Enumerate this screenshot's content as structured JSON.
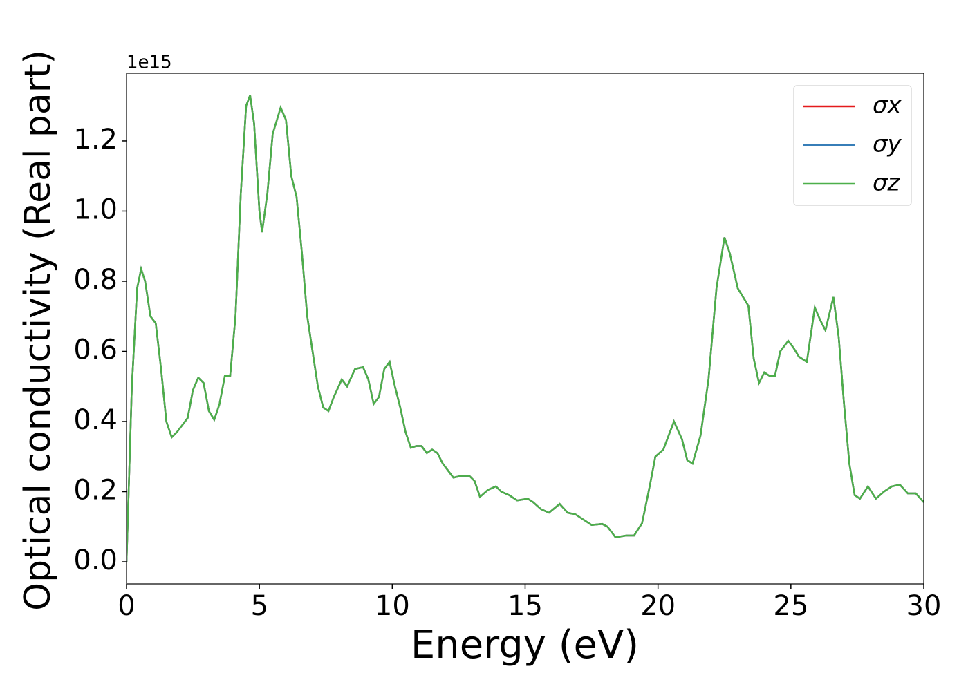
{
  "chart_data": {
    "type": "line",
    "xlabel": "Energy (eV)",
    "ylabel": "Optical conductivity (Real part)",
    "offset_label": "1e15",
    "x": [
      0,
      0.2,
      0.4,
      0.55,
      0.7,
      0.9,
      1.1,
      1.3,
      1.5,
      1.7,
      1.9,
      2.1,
      2.3,
      2.5,
      2.7,
      2.9,
      3.1,
      3.3,
      3.5,
      3.7,
      3.9,
      4.1,
      4.3,
      4.5,
      4.65,
      4.8,
      5.0,
      5.1,
      5.3,
      5.5,
      5.8,
      6.0,
      6.2,
      6.4,
      6.6,
      6.8,
      7.0,
      7.2,
      7.4,
      7.6,
      7.8,
      8.1,
      8.3,
      8.6,
      8.9,
      9.1,
      9.3,
      9.5,
      9.7,
      9.9,
      10.1,
      10.3,
      10.5,
      10.7,
      10.9,
      11.1,
      11.3,
      11.5,
      11.7,
      11.9,
      12.1,
      12.3,
      12.6,
      12.9,
      13.1,
      13.3,
      13.6,
      13.9,
      14.1,
      14.4,
      14.7,
      15.1,
      15.3,
      15.6,
      15.9,
      16.3,
      16.6,
      16.9,
      17.2,
      17.5,
      17.9,
      18.1,
      18.4,
      18.8,
      19.1,
      19.4,
      19.7,
      19.9,
      20.2,
      20.6,
      20.9,
      21.1,
      21.3,
      21.6,
      21.9,
      22.2,
      22.5,
      22.7,
      23.0,
      23.2,
      23.4,
      23.6,
      23.8,
      24.0,
      24.2,
      24.4,
      24.6,
      24.9,
      25.1,
      25.3,
      25.6,
      25.9,
      26.1,
      26.3,
      26.6,
      26.8,
      27.0,
      27.2,
      27.4,
      27.6,
      27.9,
      28.2,
      28.5,
      28.8,
      29.1,
      29.4,
      29.7,
      30
    ],
    "series": [
      {
        "name": "σx",
        "color": "#e41a1c",
        "values": [
          0,
          0.5,
          0.78,
          0.835,
          0.8,
          0.7,
          0.68,
          0.55,
          0.4,
          0.355,
          0.37,
          0.39,
          0.41,
          0.49,
          0.525,
          0.51,
          0.43,
          0.405,
          0.45,
          0.53,
          0.53,
          0.7,
          1.05,
          1.3,
          1.33,
          1.25,
          1.0,
          0.94,
          1.05,
          1.22,
          1.295,
          1.26,
          1.1,
          1.04,
          0.88,
          0.7,
          0.6,
          0.5,
          0.44,
          0.43,
          0.47,
          0.52,
          0.5,
          0.55,
          0.555,
          0.52,
          0.45,
          0.47,
          0.55,
          0.57,
          0.5,
          0.44,
          0.37,
          0.325,
          0.33,
          0.33,
          0.31,
          0.32,
          0.31,
          0.28,
          0.26,
          0.24,
          0.245,
          0.245,
          0.23,
          0.185,
          0.205,
          0.215,
          0.2,
          0.19,
          0.175,
          0.18,
          0.17,
          0.15,
          0.14,
          0.165,
          0.14,
          0.135,
          0.12,
          0.105,
          0.108,
          0.1,
          0.07,
          0.075,
          0.075,
          0.11,
          0.22,
          0.3,
          0.32,
          0.4,
          0.35,
          0.29,
          0.28,
          0.36,
          0.52,
          0.78,
          0.925,
          0.88,
          0.78,
          0.755,
          0.73,
          0.58,
          0.51,
          0.54,
          0.53,
          0.53,
          0.6,
          0.63,
          0.61,
          0.585,
          0.57,
          0.725,
          0.69,
          0.66,
          0.755,
          0.64,
          0.45,
          0.28,
          0.19,
          0.18,
          0.215,
          0.18,
          0.2,
          0.215,
          0.22,
          0.195,
          0.195,
          0.17
        ]
      },
      {
        "name": "σy",
        "color": "#377eb8",
        "values": [
          0,
          0.5,
          0.78,
          0.835,
          0.8,
          0.7,
          0.68,
          0.55,
          0.4,
          0.355,
          0.37,
          0.39,
          0.41,
          0.49,
          0.525,
          0.51,
          0.43,
          0.405,
          0.45,
          0.53,
          0.53,
          0.7,
          1.05,
          1.3,
          1.33,
          1.25,
          1.0,
          0.94,
          1.05,
          1.22,
          1.295,
          1.26,
          1.1,
          1.04,
          0.88,
          0.7,
          0.6,
          0.5,
          0.44,
          0.43,
          0.47,
          0.52,
          0.5,
          0.55,
          0.555,
          0.52,
          0.45,
          0.47,
          0.55,
          0.57,
          0.5,
          0.44,
          0.37,
          0.325,
          0.33,
          0.33,
          0.31,
          0.32,
          0.31,
          0.28,
          0.26,
          0.24,
          0.245,
          0.245,
          0.23,
          0.185,
          0.205,
          0.215,
          0.2,
          0.19,
          0.175,
          0.18,
          0.17,
          0.15,
          0.14,
          0.165,
          0.14,
          0.135,
          0.12,
          0.105,
          0.108,
          0.1,
          0.07,
          0.075,
          0.075,
          0.11,
          0.22,
          0.3,
          0.32,
          0.4,
          0.35,
          0.29,
          0.28,
          0.36,
          0.52,
          0.78,
          0.925,
          0.88,
          0.78,
          0.755,
          0.73,
          0.58,
          0.51,
          0.54,
          0.53,
          0.53,
          0.6,
          0.63,
          0.61,
          0.585,
          0.57,
          0.725,
          0.69,
          0.66,
          0.755,
          0.64,
          0.45,
          0.28,
          0.19,
          0.18,
          0.215,
          0.18,
          0.2,
          0.215,
          0.22,
          0.195,
          0.195,
          0.17
        ]
      },
      {
        "name": "σz",
        "color": "#4daf4a",
        "values": [
          0,
          0.5,
          0.78,
          0.835,
          0.8,
          0.7,
          0.68,
          0.55,
          0.4,
          0.355,
          0.37,
          0.39,
          0.41,
          0.49,
          0.525,
          0.51,
          0.43,
          0.405,
          0.45,
          0.53,
          0.53,
          0.7,
          1.05,
          1.3,
          1.33,
          1.25,
          1.0,
          0.94,
          1.05,
          1.22,
          1.295,
          1.26,
          1.1,
          1.04,
          0.88,
          0.7,
          0.6,
          0.5,
          0.44,
          0.43,
          0.47,
          0.52,
          0.5,
          0.55,
          0.555,
          0.52,
          0.45,
          0.47,
          0.55,
          0.57,
          0.5,
          0.44,
          0.37,
          0.325,
          0.33,
          0.33,
          0.31,
          0.32,
          0.31,
          0.28,
          0.26,
          0.24,
          0.245,
          0.245,
          0.23,
          0.185,
          0.205,
          0.215,
          0.2,
          0.19,
          0.175,
          0.18,
          0.17,
          0.15,
          0.14,
          0.165,
          0.14,
          0.135,
          0.12,
          0.105,
          0.108,
          0.1,
          0.07,
          0.075,
          0.075,
          0.11,
          0.22,
          0.3,
          0.32,
          0.4,
          0.35,
          0.29,
          0.28,
          0.36,
          0.52,
          0.78,
          0.925,
          0.88,
          0.78,
          0.755,
          0.73,
          0.58,
          0.51,
          0.54,
          0.53,
          0.53,
          0.6,
          0.63,
          0.61,
          0.585,
          0.57,
          0.725,
          0.69,
          0.66,
          0.755,
          0.64,
          0.45,
          0.28,
          0.19,
          0.18,
          0.215,
          0.18,
          0.2,
          0.215,
          0.22,
          0.195,
          0.195,
          0.17
        ]
      }
    ],
    "xlim": [
      0,
      30
    ],
    "xticks": [
      0,
      5,
      10,
      15,
      20,
      25,
      30
    ],
    "ylim": [
      -0.063,
      1.393
    ],
    "yticks": [
      {
        "value": 0,
        "label": "0.0"
      },
      0.2,
      0.4,
      0.6,
      0.8,
      {
        "value": 1,
        "label": "1.0"
      },
      1.2
    ],
    "grid": false,
    "legend": "upper right"
  }
}
